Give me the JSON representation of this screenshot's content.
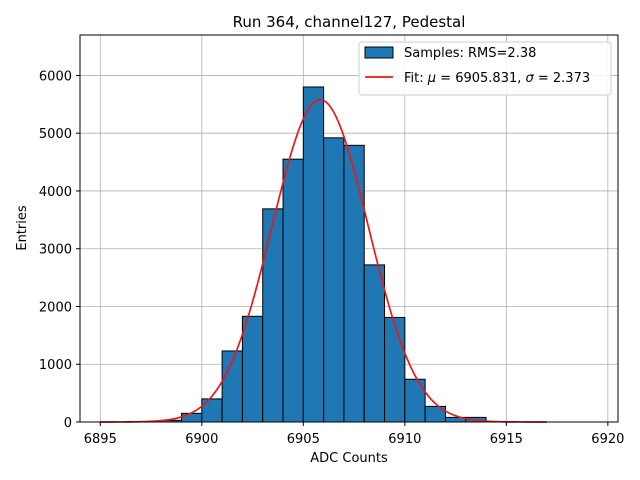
{
  "chart_data": {
    "type": "bar",
    "title": "Run 364, channel127, Pedestal",
    "xlabel": "ADC Counts",
    "ylabel": "Entries",
    "xlim": [
      6894,
      6920.5
    ],
    "ylim": [
      0,
      6700
    ],
    "grid": true,
    "legend_position": "top-right",
    "xticks": [
      6895,
      6900,
      6905,
      6910,
      6915,
      6920
    ],
    "yticks": [
      0,
      1000,
      2000,
      3000,
      4000,
      5000,
      6000
    ],
    "bar_color": "#1f77b4",
    "fit_color": "#e41a1c",
    "series": [
      {
        "name": "Samples: RMS=2.38",
        "type": "histogram",
        "bin_width": 1,
        "bins": [
          {
            "x": 6898,
            "value": 30
          },
          {
            "x": 6899,
            "value": 150
          },
          {
            "x": 6900,
            "value": 400
          },
          {
            "x": 6901,
            "value": 1230
          },
          {
            "x": 6902,
            "value": 1830
          },
          {
            "x": 6903,
            "value": 3690
          },
          {
            "x": 6904,
            "value": 4550
          },
          {
            "x": 6905,
            "value": 5800
          },
          {
            "x": 6906,
            "value": 4920
          },
          {
            "x": 6907,
            "value": 4790
          },
          {
            "x": 6908,
            "value": 2720
          },
          {
            "x": 6909,
            "value": 1810
          },
          {
            "x": 6910,
            "value": 740
          },
          {
            "x": 6911,
            "value": 270
          },
          {
            "x": 6912,
            "value": 80
          },
          {
            "x": 6913,
            "value": 80
          }
        ]
      },
      {
        "name": "Fit: μ = 6905.831, σ = 2.373",
        "type": "gaussian",
        "mu": 6905.831,
        "sigma": 2.373,
        "amplitude": 5580,
        "x_range": [
          6895,
          6917
        ]
      }
    ],
    "legend": [
      {
        "label_prefix": "Samples: RMS=2.38",
        "kind": "patch"
      },
      {
        "label_prefix": "Fit: ",
        "kind": "line"
      }
    ]
  }
}
